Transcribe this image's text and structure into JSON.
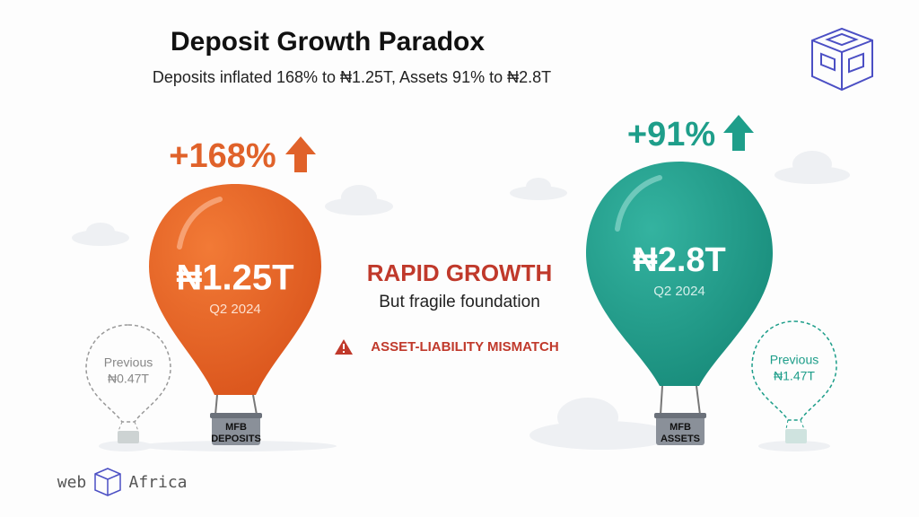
{
  "header": {
    "title": "Deposit Growth Paradox",
    "subtitle": "Deposits inflated 168% to ₦1.25T, Assets 91% to ₦2.8T"
  },
  "balloons": [
    {
      "change": "+168%",
      "value": "₦1.25T",
      "period": "Q2 2024",
      "previous_label": "Previous",
      "previous_value": "₦0.47T",
      "basket": [
        "MFB",
        "DEPOSITS"
      ]
    },
    {
      "change": "+91%",
      "value": "₦2.8T",
      "period": "Q2 2024",
      "previous_label": "Previous",
      "previous_value": "₦1.47T",
      "basket": [
        "MFB",
        "ASSETS"
      ]
    }
  ],
  "center": {
    "headline": "RAPID GROWTH",
    "subtext": "But fragile foundation",
    "warning": "ASSET-LIABILITY MISMATCH"
  },
  "footer": {
    "brand_left": "web",
    "brand_right": "Africa"
  }
}
